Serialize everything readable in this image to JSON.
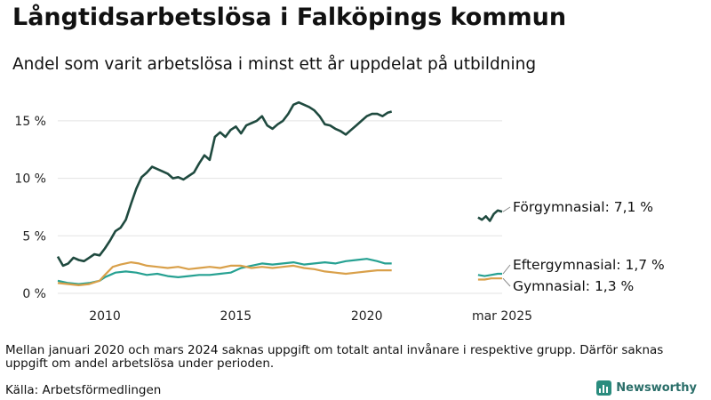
{
  "title": "Långtidsarbetslösa i Falköpings kommun",
  "subtitle": "Andel som varit arbetslösa i minst ett år uppdelat på utbildning",
  "note": "Mellan januari 2020 och mars 2024 saknas uppgift om totalt antal invånare i respektive grupp. Därför saknas uppgift om andel arbetslösa under perioden.",
  "source": "Källa: Arbetsförmedlingen",
  "brand": "Newsworthy",
  "brand_color": "#2a8c7e",
  "chart_data": {
    "type": "line",
    "ylim": [
      0,
      17
    ],
    "y_ticks": [
      0,
      5,
      10,
      15
    ],
    "y_tick_labels": [
      "0 %",
      "5 %",
      "10 %",
      "15 %"
    ],
    "x_ticks": [
      2010,
      2015,
      2020,
      2025.17
    ],
    "x_tick_labels": [
      "2010",
      "2015",
      "2020",
      "mar 2025"
    ],
    "grid": "horizontal",
    "series": [
      {
        "name": "Förgymnasial",
        "end_label": "Förgymnasial: 7,1 %",
        "color": "#1f4a3f",
        "segments": [
          [
            [
              2008.2,
              3.2
            ],
            [
              2008.4,
              2.4
            ],
            [
              2008.6,
              2.6
            ],
            [
              2008.8,
              3.1
            ],
            [
              2009.0,
              2.9
            ],
            [
              2009.2,
              2.8
            ],
            [
              2009.4,
              3.1
            ],
            [
              2009.6,
              3.4
            ],
            [
              2009.8,
              3.3
            ],
            [
              2010.0,
              3.9
            ],
            [
              2010.2,
              4.6
            ],
            [
              2010.4,
              5.4
            ],
            [
              2010.6,
              5.7
            ],
            [
              2010.8,
              6.4
            ],
            [
              2011.0,
              7.8
            ],
            [
              2011.2,
              9.1
            ],
            [
              2011.4,
              10.1
            ],
            [
              2011.6,
              10.5
            ],
            [
              2011.8,
              11.0
            ],
            [
              2012.0,
              10.8
            ],
            [
              2012.2,
              10.6
            ],
            [
              2012.4,
              10.4
            ],
            [
              2012.6,
              10.0
            ],
            [
              2012.8,
              10.1
            ],
            [
              2013.0,
              9.9
            ],
            [
              2013.2,
              10.2
            ],
            [
              2013.4,
              10.5
            ],
            [
              2013.6,
              11.3
            ],
            [
              2013.8,
              12.0
            ],
            [
              2014.0,
              11.6
            ],
            [
              2014.2,
              13.6
            ],
            [
              2014.4,
              14.0
            ],
            [
              2014.6,
              13.6
            ],
            [
              2014.8,
              14.2
            ],
            [
              2015.0,
              14.5
            ],
            [
              2015.2,
              13.9
            ],
            [
              2015.4,
              14.6
            ],
            [
              2015.6,
              14.8
            ],
            [
              2015.8,
              15.0
            ],
            [
              2016.0,
              15.4
            ],
            [
              2016.2,
              14.6
            ],
            [
              2016.4,
              14.3
            ],
            [
              2016.6,
              14.7
            ],
            [
              2016.8,
              15.0
            ],
            [
              2017.0,
              15.6
            ],
            [
              2017.2,
              16.4
            ],
            [
              2017.4,
              16.6
            ],
            [
              2017.6,
              16.4
            ],
            [
              2017.8,
              16.2
            ],
            [
              2018.0,
              15.9
            ],
            [
              2018.2,
              15.4
            ],
            [
              2018.4,
              14.7
            ],
            [
              2018.6,
              14.6
            ],
            [
              2018.8,
              14.3
            ],
            [
              2019.0,
              14.1
            ],
            [
              2019.2,
              13.8
            ],
            [
              2019.4,
              14.2
            ],
            [
              2019.6,
              14.6
            ],
            [
              2019.8,
              15.0
            ],
            [
              2020.0,
              15.4
            ],
            [
              2020.2,
              15.6
            ],
            [
              2020.4,
              15.6
            ],
            [
              2020.6,
              15.4
            ],
            [
              2020.8,
              15.7
            ],
            [
              2020.95,
              15.8
            ]
          ],
          [
            [
              2024.25,
              6.6
            ],
            [
              2024.4,
              6.4
            ],
            [
              2024.55,
              6.7
            ],
            [
              2024.7,
              6.3
            ],
            [
              2024.85,
              6.9
            ],
            [
              2025.0,
              7.2
            ],
            [
              2025.17,
              7.1
            ]
          ]
        ]
      },
      {
        "name": "Eftergymnasial",
        "end_label": "Eftergymnasial: 1,7 %",
        "color": "#26a192",
        "segments": [
          [
            [
              2008.2,
              1.1
            ],
            [
              2008.6,
              0.9
            ],
            [
              2009.0,
              0.8
            ],
            [
              2009.4,
              0.9
            ],
            [
              2009.8,
              1.1
            ],
            [
              2010.0,
              1.4
            ],
            [
              2010.4,
              1.8
            ],
            [
              2010.8,
              1.9
            ],
            [
              2011.2,
              1.8
            ],
            [
              2011.6,
              1.6
            ],
            [
              2012.0,
              1.7
            ],
            [
              2012.4,
              1.5
            ],
            [
              2012.8,
              1.4
            ],
            [
              2013.2,
              1.5
            ],
            [
              2013.6,
              1.6
            ],
            [
              2014.0,
              1.6
            ],
            [
              2014.4,
              1.7
            ],
            [
              2014.8,
              1.8
            ],
            [
              2015.2,
              2.2
            ],
            [
              2015.6,
              2.4
            ],
            [
              2016.0,
              2.6
            ],
            [
              2016.4,
              2.5
            ],
            [
              2016.8,
              2.6
            ],
            [
              2017.2,
              2.7
            ],
            [
              2017.6,
              2.5
            ],
            [
              2018.0,
              2.6
            ],
            [
              2018.4,
              2.7
            ],
            [
              2018.8,
              2.6
            ],
            [
              2019.2,
              2.8
            ],
            [
              2019.6,
              2.9
            ],
            [
              2020.0,
              3.0
            ],
            [
              2020.4,
              2.8
            ],
            [
              2020.7,
              2.6
            ],
            [
              2020.95,
              2.6
            ]
          ],
          [
            [
              2024.25,
              1.6
            ],
            [
              2024.5,
              1.5
            ],
            [
              2024.75,
              1.6
            ],
            [
              2025.0,
              1.7
            ],
            [
              2025.17,
              1.7
            ]
          ]
        ]
      },
      {
        "name": "Gymnasial",
        "end_label": "Gymnasial: 1,3 %",
        "color": "#d9a04a",
        "segments": [
          [
            [
              2008.2,
              0.9
            ],
            [
              2008.6,
              0.8
            ],
            [
              2009.0,
              0.7
            ],
            [
              2009.4,
              0.8
            ],
            [
              2009.8,
              1.1
            ],
            [
              2010.0,
              1.6
            ],
            [
              2010.3,
              2.3
            ],
            [
              2010.6,
              2.5
            ],
            [
              2011.0,
              2.7
            ],
            [
              2011.3,
              2.6
            ],
            [
              2011.6,
              2.4
            ],
            [
              2012.0,
              2.3
            ],
            [
              2012.4,
              2.2
            ],
            [
              2012.8,
              2.3
            ],
            [
              2013.2,
              2.1
            ],
            [
              2013.6,
              2.2
            ],
            [
              2014.0,
              2.3
            ],
            [
              2014.4,
              2.2
            ],
            [
              2014.8,
              2.4
            ],
            [
              2015.2,
              2.4
            ],
            [
              2015.6,
              2.2
            ],
            [
              2016.0,
              2.3
            ],
            [
              2016.4,
              2.2
            ],
            [
              2016.8,
              2.3
            ],
            [
              2017.2,
              2.4
            ],
            [
              2017.6,
              2.2
            ],
            [
              2018.0,
              2.1
            ],
            [
              2018.4,
              1.9
            ],
            [
              2018.8,
              1.8
            ],
            [
              2019.2,
              1.7
            ],
            [
              2019.6,
              1.8
            ],
            [
              2020.0,
              1.9
            ],
            [
              2020.4,
              2.0
            ],
            [
              2020.7,
              2.0
            ],
            [
              2020.95,
              2.0
            ]
          ],
          [
            [
              2024.25,
              1.2
            ],
            [
              2024.5,
              1.2
            ],
            [
              2024.75,
              1.3
            ],
            [
              2025.0,
              1.3
            ],
            [
              2025.17,
              1.3
            ]
          ]
        ]
      }
    ]
  }
}
